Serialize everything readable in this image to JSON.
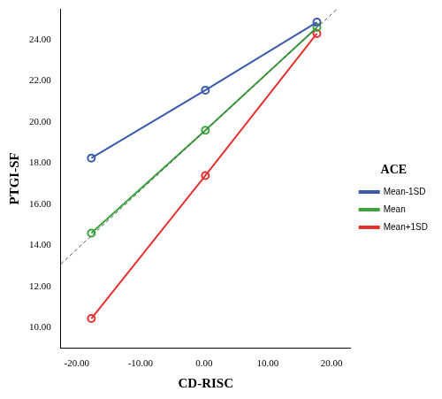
{
  "chart_data": {
    "type": "line",
    "x_label": "CD-RISC",
    "y_label": "PTGI-SF",
    "legend_title": "ACE",
    "legend": "right",
    "grid": false,
    "marker": "circle",
    "xlim": [
      -22.5,
      23
    ],
    "ylim": [
      9,
      25.5
    ],
    "xticks": [
      {
        "value": -20,
        "label": "-20.00"
      },
      {
        "value": -10,
        "label": "-10.00"
      },
      {
        "value": 0,
        "label": "0.00"
      },
      {
        "value": 10,
        "label": "10.00"
      },
      {
        "value": 20,
        "label": "20.00"
      }
    ],
    "yticks": [
      {
        "value": 10,
        "label": "10.00"
      },
      {
        "value": 12,
        "label": "12.00"
      },
      {
        "value": 14,
        "label": "14.00"
      },
      {
        "value": 16,
        "label": "16.00"
      },
      {
        "value": 18,
        "label": "18.00"
      },
      {
        "value": 20,
        "label": "20.00"
      },
      {
        "value": 22,
        "label": "22.00"
      },
      {
        "value": 24,
        "label": "24.00"
      }
    ],
    "x": [
      -17.7,
      0.2,
      17.7
    ],
    "series": [
      {
        "name": "Mean-1SD",
        "color": "#3b5baa",
        "values": [
          18.25,
          21.55,
          24.85
        ]
      },
      {
        "name": "Mean",
        "color": "#3aa53a",
        "values": [
          14.6,
          19.6,
          24.6
        ]
      },
      {
        "name": "Mean+1SD",
        "color": "#e8312f",
        "values": [
          10.45,
          17.4,
          24.3
        ]
      }
    ],
    "reference_line": {
      "x": [
        -22.5,
        23
      ],
      "values": [
        13.1,
        26.1
      ],
      "color": "#555555",
      "line_style": "dashed"
    }
  }
}
